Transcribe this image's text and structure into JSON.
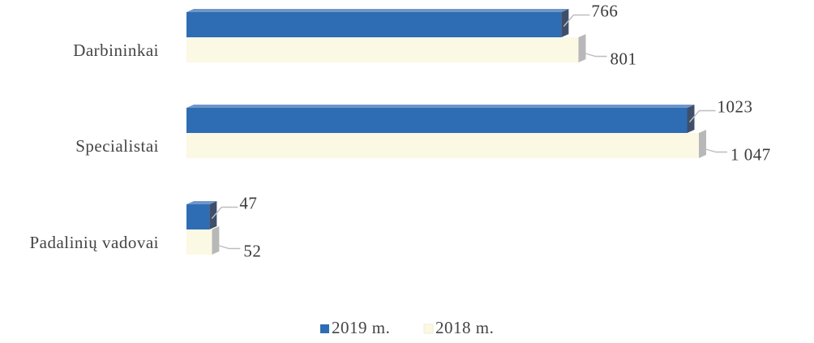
{
  "chart_data": {
    "type": "bar",
    "orientation": "horizontal",
    "three_d": true,
    "categories": [
      "Darbininkai",
      "Specialistai",
      "Padalinių vadovai"
    ],
    "series": [
      {
        "name": "2019 m.",
        "color": "#2e6db4",
        "values": [
          766,
          1023,
          47
        ],
        "labels": [
          "766",
          "1023",
          "47"
        ]
      },
      {
        "name": "2018 m.",
        "color": "#fbf8e4",
        "values": [
          801,
          1047,
          52
        ],
        "labels": [
          "801",
          "1 047",
          "52"
        ]
      }
    ],
    "xlim": [
      0,
      1047
    ],
    "grid": false,
    "legend_position": "bottom",
    "data_labels": true
  }
}
